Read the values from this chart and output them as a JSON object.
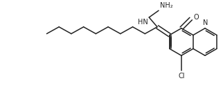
{
  "bg_color": "#ffffff",
  "line_color": "#222222",
  "line_width": 1.1,
  "figsize": [
    3.22,
    1.46
  ],
  "dpi": 100,
  "labels": {
    "N": "N",
    "NH2": "NH₂",
    "HN": "HN",
    "O": "O",
    "Cl": "Cl"
  },
  "font_size": 7.0
}
